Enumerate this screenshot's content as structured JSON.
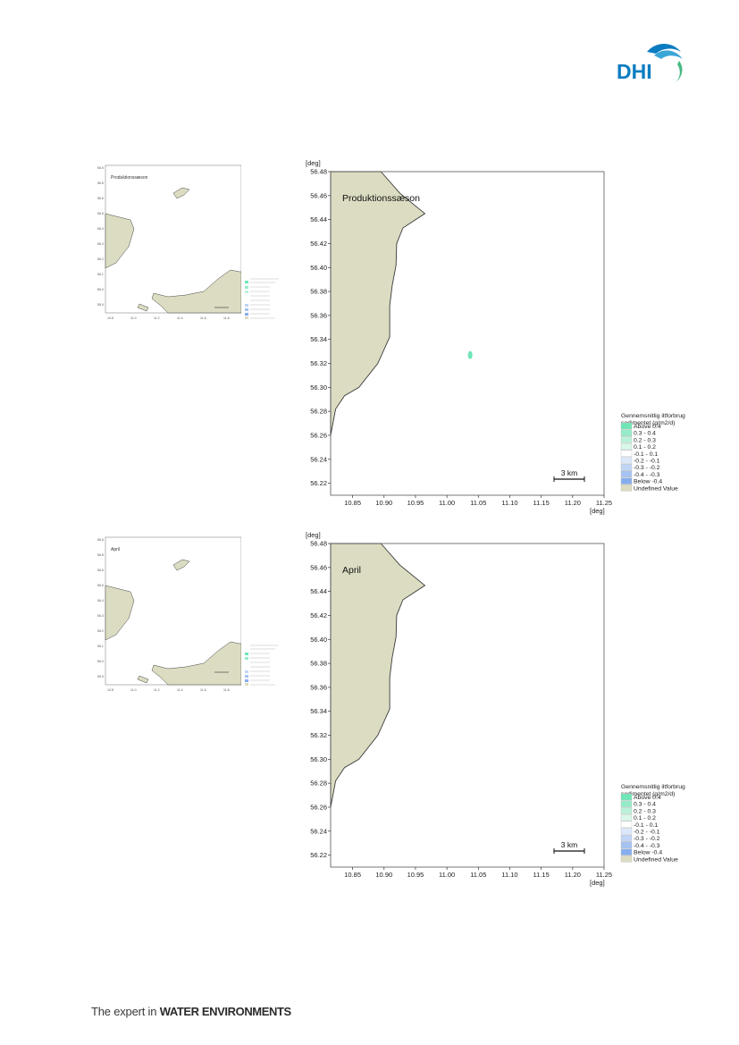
{
  "header": {
    "logo_text": "DHI",
    "tagline_prefix": "The expert in ",
    "tagline_bold": "WATER ENVIRONMENTS"
  },
  "colors": {
    "land": "#dcdcc2",
    "land_stroke": "#3a3a3a",
    "above_04": "#6fe6b6",
    "c_03_04": "#96ecc8",
    "c_02_03": "#b9f2d9",
    "c_01_02": "#daf8ea",
    "c_m01_01": "#ffffff",
    "c_m02_m01": "#dbe8fb",
    "c_m03_m02": "#c1d6f6",
    "c_m04_m03": "#a6c3f1",
    "below_m04": "#85aeee",
    "logo_blue": "#0a7cc1",
    "logo_green": "#46b985"
  },
  "chart_data": [
    {
      "type": "heatmap",
      "title": "Produktionssæson",
      "xlabel": "[deg]",
      "ylabel": "[deg]",
      "xlim": [
        10.815,
        11.25
      ],
      "ylim": [
        56.21,
        56.48
      ],
      "xticks": [
        "10.85",
        "10.90",
        "10.95",
        "11.00",
        "11.05",
        "11.10",
        "11.15",
        "11.20",
        "11.25"
      ],
      "yticks": [
        "56.22",
        "56.24",
        "56.26",
        "56.28",
        "56.30",
        "56.32",
        "56.34",
        "56.36",
        "56.38",
        "56.40",
        "56.42",
        "56.44",
        "56.46",
        "56.48"
      ],
      "coastline": [
        [
          10.895,
          56.48
        ],
        [
          10.925,
          56.462
        ],
        [
          10.965,
          56.445
        ],
        [
          10.93,
          56.433
        ],
        [
          10.92,
          56.42
        ],
        [
          10.919,
          56.402
        ],
        [
          10.913,
          56.385
        ],
        [
          10.909,
          56.368
        ],
        [
          10.909,
          56.342
        ],
        [
          10.89,
          56.32
        ],
        [
          10.86,
          56.3
        ],
        [
          10.837,
          56.293
        ],
        [
          10.823,
          56.282
        ],
        [
          10.815,
          56.26
        ]
      ],
      "features": [
        {
          "x": 11.037,
          "y": 56.327,
          "class": "Above 0.4"
        }
      ],
      "scalebar": "3 km",
      "legend": {
        "title": [
          "Gennemsnitlig iltforbrug",
          "sedimentet (g/m2/d)"
        ],
        "entries": [
          "Above  0.4",
          "  0.3 -  0.4",
          "  0.2 -  0.3",
          "  0.1 -  0.2",
          " -0.1 -  0.1",
          " -0.2 - -0.1",
          " -0.3 - -0.2",
          " -0.4 - -0.3",
          "Below -0.4",
          "Undefined Value"
        ]
      }
    },
    {
      "type": "heatmap",
      "title": "April",
      "xlabel": "[deg]",
      "ylabel": "[deg]",
      "xlim": [
        10.815,
        11.25
      ],
      "ylim": [
        56.21,
        56.48
      ],
      "xticks": [
        "10.85",
        "10.90",
        "10.95",
        "11.00",
        "11.05",
        "11.10",
        "11.15",
        "11.20",
        "11.25"
      ],
      "yticks": [
        "56.22",
        "56.24",
        "56.26",
        "56.28",
        "56.30",
        "56.32",
        "56.34",
        "56.36",
        "56.38",
        "56.40",
        "56.42",
        "56.44",
        "56.46",
        "56.48"
      ],
      "coastline": [
        [
          10.895,
          56.48
        ],
        [
          10.925,
          56.462
        ],
        [
          10.965,
          56.445
        ],
        [
          10.93,
          56.433
        ],
        [
          10.92,
          56.42
        ],
        [
          10.919,
          56.402
        ],
        [
          10.913,
          56.385
        ],
        [
          10.909,
          56.368
        ],
        [
          10.909,
          56.342
        ],
        [
          10.89,
          56.32
        ],
        [
          10.86,
          56.3
        ],
        [
          10.837,
          56.293
        ],
        [
          10.823,
          56.282
        ],
        [
          10.815,
          56.26
        ]
      ],
      "features": [],
      "scalebar": "3 km",
      "legend": {
        "title": [
          "Gennemsnitlig iltforbrug",
          "sedimentet (g/m2/d)"
        ],
        "entries": [
          "Above  0.4",
          "  0.3 -  0.4",
          "  0.2 -  0.3",
          "  0.1 -  0.2",
          " -0.1 -  0.1",
          " -0.2 - -0.1",
          " -0.3 - -0.2",
          " -0.4 - -0.3",
          "Below -0.4",
          "Undefined Value"
        ]
      }
    }
  ],
  "overview_maps": [
    {
      "title": "Produktionssæson"
    },
    {
      "title": "April"
    }
  ]
}
